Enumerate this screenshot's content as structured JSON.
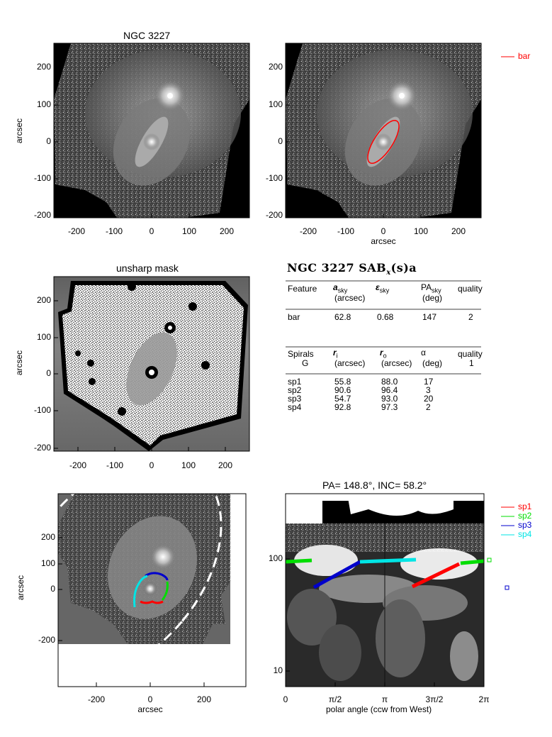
{
  "panel1": {
    "title": "NGC 3227",
    "ylabel": "arcsec",
    "yticks": [
      "200",
      "100",
      "0",
      "-100",
      "-200"
    ],
    "xticks": [
      "-200",
      "-100",
      "0",
      "100",
      "200"
    ]
  },
  "panel2": {
    "xlabel": "arcsec",
    "yticks": [
      "200",
      "100",
      "0",
      "-100",
      "-200"
    ],
    "xticks": [
      "-200",
      "-100",
      "0",
      "100",
      "200"
    ],
    "legend": "bar"
  },
  "panel3": {
    "title": "unsharp mask",
    "ylabel": "arcsec",
    "yticks": [
      "200",
      "100",
      "0",
      "-100",
      "-200"
    ],
    "xticks": [
      "-200",
      "-100",
      "0",
      "100",
      "200"
    ]
  },
  "table": {
    "title": "NGC 3227  SAB",
    "title_sub": "x",
    "title_tail": "(s)a",
    "h1": {
      "feature": "Feature",
      "a": "a",
      "a_sub": "sky",
      "a_unit": "(arcsec)",
      "e": "ε",
      "e_sub": "sky",
      "pa": "PA",
      "pa_sub": "sky",
      "pa_unit": "(deg)",
      "quality": "quality"
    },
    "bar_row": {
      "name": "bar",
      "a": "62.8",
      "e": "0.68",
      "pa": "147",
      "quality": "2"
    },
    "h2": {
      "spirals": "Spirals",
      "g": "G",
      "ri": "r",
      "ri_sub": "i",
      "ri_unit": "(arcsec)",
      "ro": "r",
      "ro_sub": "o",
      "ro_unit": "(arcsec)",
      "alpha": "α",
      "alpha_unit": "(deg)",
      "quality": "quality",
      "quality_val": "1"
    },
    "rows": [
      {
        "name": "sp1",
        "ri": "55.8",
        "ro": "88.0",
        "alpha": "17"
      },
      {
        "name": "sp2",
        "ri": "90.6",
        "ro": "96.4",
        "alpha": "3"
      },
      {
        "name": "sp3",
        "ri": "54.7",
        "ro": "93.0",
        "alpha": "20"
      },
      {
        "name": "sp4",
        "ri": "92.8",
        "ro": "97.3",
        "alpha": "2"
      }
    ]
  },
  "panel5": {
    "xlabel": "arcsec",
    "ylabel": "arcsec",
    "yticks": [
      "200",
      "100",
      "0",
      "-200"
    ],
    "xticks": [
      "-200",
      "0",
      "200"
    ]
  },
  "panel6": {
    "title": "PA= 148.8°, INC=  58.2°",
    "xlabel": "polar angle (ccw from West)",
    "xticks": [
      "0",
      "π/2",
      "π",
      "3π/2",
      "2π"
    ],
    "yticks": [
      "100",
      "10"
    ],
    "legend": [
      {
        "name": "sp1",
        "color": "#ff0000"
      },
      {
        "name": "sp2",
        "color": "#00dd00"
      },
      {
        "name": "sp3",
        "color": "#0000cc"
      },
      {
        "name": "sp4",
        "color": "#00e5e5"
      }
    ]
  },
  "colors": {
    "bar": "#ff0000",
    "sp1": "#ff0000",
    "sp2": "#00dd00",
    "sp3": "#0000cc",
    "sp4": "#00e5e5"
  }
}
